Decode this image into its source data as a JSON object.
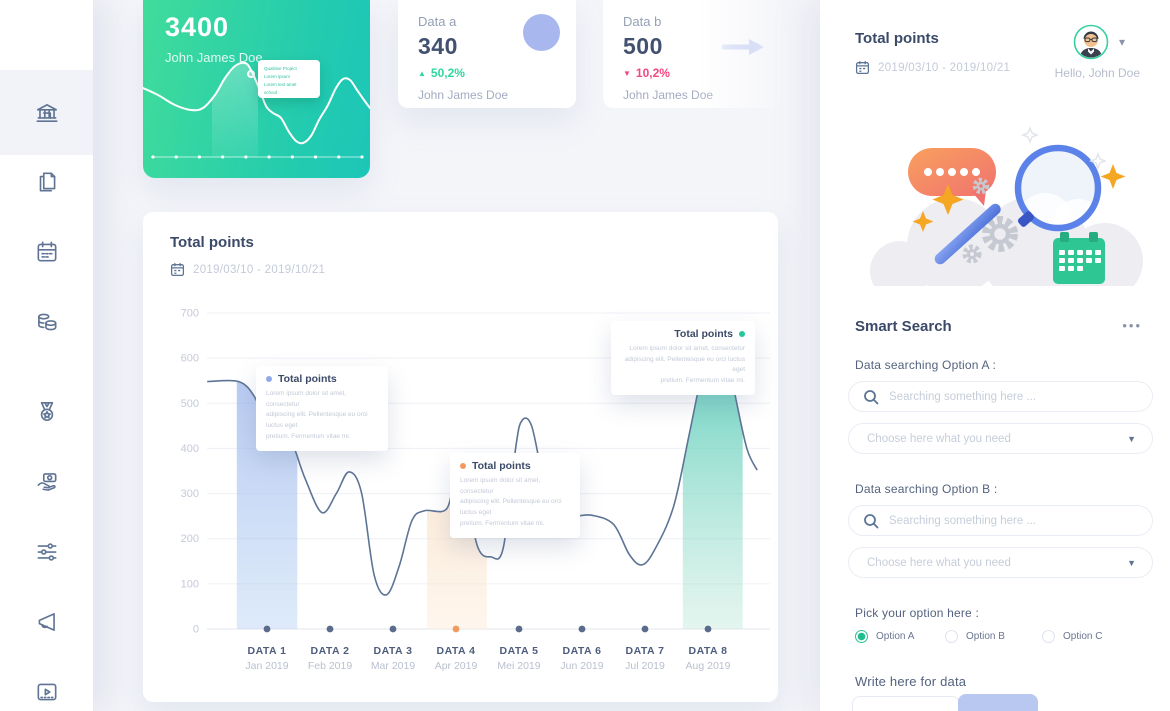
{
  "icons": {
    "menu_dots": "•••",
    "chevron_down": "▾",
    "select_caret": "▼",
    "delta_up": "▲",
    "delta_down": "▼"
  },
  "colors": {
    "accent_green": "#25c493",
    "delta_up": "#2fd6a0",
    "delta_down": "#f4477e",
    "stat_circle": "#a9b7ef",
    "card_gradient_start": "#40dc9b",
    "card_gradient_end": "#1cc6b8"
  },
  "sidebar": {
    "items": [
      {
        "name": "bank"
      },
      {
        "name": "documents"
      },
      {
        "name": "calendar"
      },
      {
        "name": "coins"
      },
      {
        "name": "medal"
      },
      {
        "name": "donation"
      },
      {
        "name": "sliders"
      },
      {
        "name": "megaphone"
      },
      {
        "name": "video"
      }
    ]
  },
  "cards": {
    "summary_green": {
      "value": "3400",
      "owner": "John James Doe",
      "tooltip_lines": [
        "Qualitive Project",
        "Lorem ipsum",
        "Lorem text amet",
        "school"
      ],
      "mini": {
        "points": [
          [
            0,
            88
          ],
          [
            15,
            95
          ],
          [
            32,
            105
          ],
          [
            48,
            110
          ],
          [
            60,
            108
          ],
          [
            72,
            95
          ],
          [
            82,
            78
          ],
          [
            92,
            66
          ],
          [
            102,
            63
          ],
          [
            108,
            70
          ],
          [
            116,
            88
          ],
          [
            123,
            106
          ],
          [
            130,
            113
          ],
          [
            138,
            118
          ],
          [
            146,
            132
          ],
          [
            153,
            141
          ],
          [
            160,
            143
          ],
          [
            168,
            136
          ],
          [
            176,
            120
          ],
          [
            185,
            105
          ],
          [
            193,
            88
          ],
          [
            200,
            79
          ],
          [
            207,
            80
          ],
          [
            214,
            90
          ],
          [
            221,
            100
          ],
          [
            227,
            108
          ]
        ],
        "band": [
          69,
          115
        ],
        "axis_y": 157,
        "marker": [
          108,
          72
        ],
        "dot_count": 10
      }
    },
    "data_a": {
      "label": "Data a",
      "value": "340",
      "delta": "50,2%",
      "delta_dir": "up",
      "owner": "John James Doe"
    },
    "data_b": {
      "label": "Data b",
      "value": "500",
      "delta": "10,2%",
      "delta_dir": "down",
      "owner": "John James Doe"
    }
  },
  "main_chart": {
    "title": "Total points",
    "date_range": "2019/03/10 - 2019/10/21"
  },
  "chart_data": {
    "type": "area",
    "title": "Total points",
    "date_range": "2019/03/10 - 2019/10/21",
    "ylim": [
      0,
      700
    ],
    "y_ticks": [
      0,
      100,
      200,
      300,
      400,
      500,
      600,
      700
    ],
    "grid": true,
    "categories": [
      "DATA 1",
      "DATA 2",
      "DATA 3",
      "DATA 4",
      "DATA 5",
      "DATA 6",
      "DATA 7",
      "DATA 8"
    ],
    "months": [
      "Jan 2019",
      "Feb 2019",
      "Mar 2019",
      "Apr 2019",
      "Mei 2019",
      "Jun 2019",
      "Jul 2019",
      "Aug 2019"
    ],
    "values_at_categories": [
      455,
      348,
      255,
      345,
      462,
      252,
      170,
      650
    ],
    "series": [
      {
        "name": "Total points",
        "color": "#5d7495",
        "points": [
          [
            0.05,
            548
          ],
          [
            0.55,
            548
          ],
          [
            0.8,
            515
          ],
          [
            0.95,
            462
          ],
          [
            1.1,
            445
          ],
          [
            1.35,
            428
          ],
          [
            1.6,
            335
          ],
          [
            1.87,
            258
          ],
          [
            2.1,
            300
          ],
          [
            2.3,
            348
          ],
          [
            2.5,
            302
          ],
          [
            2.7,
            120
          ],
          [
            2.9,
            76
          ],
          [
            3.1,
            140
          ],
          [
            3.3,
            240
          ],
          [
            3.5,
            262
          ],
          [
            3.85,
            266
          ],
          [
            4.0,
            345
          ],
          [
            4.15,
            298
          ],
          [
            4.35,
            180
          ],
          [
            4.55,
            160
          ],
          [
            4.75,
            180
          ],
          [
            4.95,
            405
          ],
          [
            5.05,
            462
          ],
          [
            5.2,
            450
          ],
          [
            5.38,
            335
          ],
          [
            5.55,
            262
          ],
          [
            5.85,
            250
          ],
          [
            6.15,
            252
          ],
          [
            6.5,
            232
          ],
          [
            6.75,
            165
          ],
          [
            6.95,
            142
          ],
          [
            7.15,
            175
          ],
          [
            7.45,
            270
          ],
          [
            7.7,
            430
          ],
          [
            7.9,
            565
          ],
          [
            8.05,
            645
          ],
          [
            8.15,
            652
          ],
          [
            8.28,
            628
          ],
          [
            8.45,
            505
          ],
          [
            8.62,
            398
          ],
          [
            8.78,
            352
          ]
        ]
      }
    ],
    "highlight_bands": [
      {
        "x0": 0.52,
        "x1": 1.48,
        "top": "rgba(143,169,233,0.75)",
        "bottom": "rgba(173,204,242,0.40)"
      },
      {
        "x0": 3.54,
        "x1": 4.49,
        "top": "rgba(246,198,149,0.60)",
        "bottom": "rgba(253,238,222,0.55)"
      },
      {
        "x0": 7.6,
        "x1": 8.55,
        "top": "rgba(46,192,169,0.85)",
        "bottom": "rgba(194,233,219,0.45)"
      }
    ],
    "axis_dot_colors": [
      "#5b6b8c",
      "#5b6b8c",
      "#5b6b8c",
      "#f09a60",
      "#5b6b8c",
      "#5b6b8c",
      "#5b6b8c",
      "#5b6b8c"
    ],
    "tooltips": [
      {
        "title": "Total points",
        "dot": "#8fa9e9",
        "lines": [
          "Lorem ipsum dolor sit amet, consectetur",
          "adipiscing elit. Pellentesque eu orci luctus eget",
          "pretium. Fermentum vitae mi."
        ]
      },
      {
        "title": "Total points",
        "dot": "#f09a60",
        "lines": [
          "Lorem ipsum dolor sit amet, consectetur",
          "adipiscing elit. Pellentesque eu orci luctus eget",
          "pretium. Fermentum vitae mi."
        ]
      },
      {
        "title": "Total points",
        "dot": "#27c79d",
        "lines": [
          "Lorem ipsum dolor sit amet, consectetur",
          "adipiscing elit. Pellentesque eu orci luctus eget",
          "pretium. Fermentum vitae mi."
        ]
      }
    ],
    "legend_position": "none"
  },
  "right_panel": {
    "title": "Total points",
    "date_range": "2019/03/10 - 2019/10/21",
    "greeting": "Hello, John Doe",
    "smart_search_title": "Smart Search",
    "option_a_label": "Data searching Option A :",
    "option_b_label": "Data searching Option B :",
    "search_placeholder": "Searching something here ...",
    "select_placeholder": "Choose here what you need",
    "pick_label": "Pick your option here :",
    "radios": [
      {
        "label": "Option A",
        "selected": true
      },
      {
        "label": "Option B",
        "selected": false
      },
      {
        "label": "Option C",
        "selected": false
      }
    ],
    "write_label": "Write here for data"
  }
}
